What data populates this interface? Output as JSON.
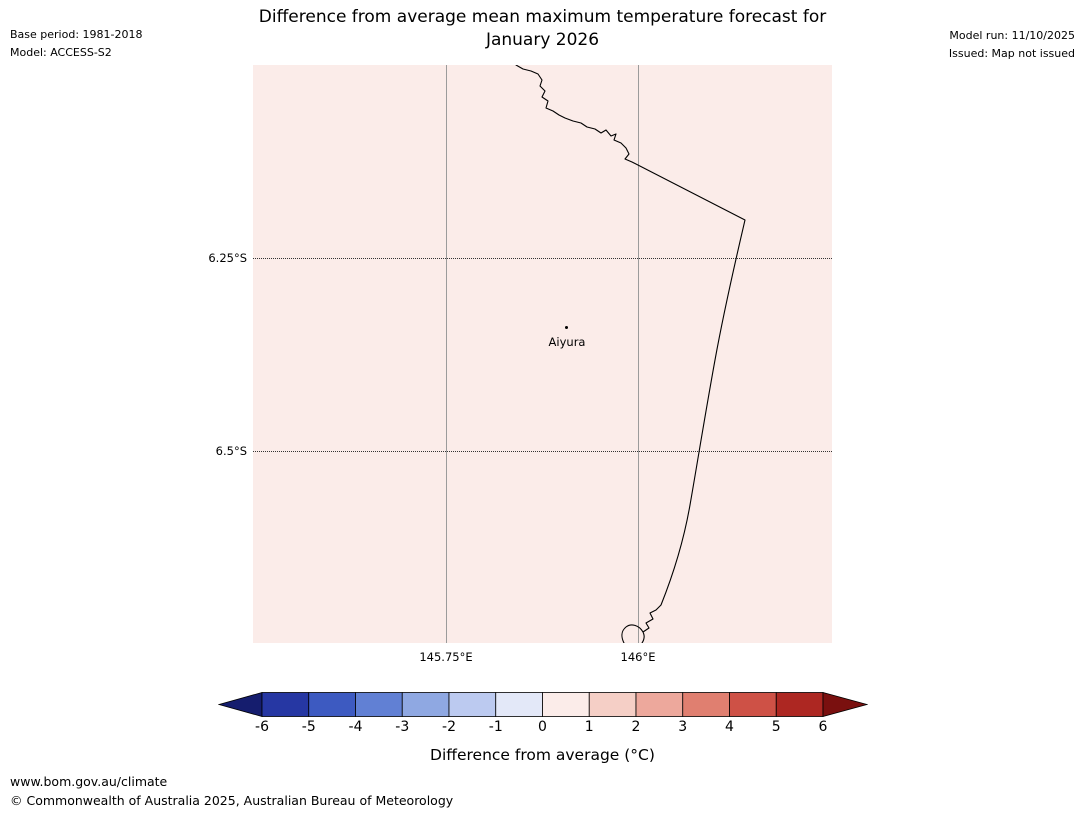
{
  "header": {
    "title_line1": "Difference from average mean maximum temperature forecast for",
    "title_line2": "January 2026",
    "base_period": "Base period: 1981-2018",
    "model": "Model: ACCESS-S2",
    "model_run": "Model run: 11/10/2025",
    "issued": "Issued: Map not issued"
  },
  "map": {
    "fill_color": "#fbece9",
    "coastline_color": "#000000",
    "lat_ticks": [
      "6.25°S",
      "6.5°S"
    ],
    "lon_ticks": [
      "145.75°E",
      "146°E"
    ],
    "station": {
      "name": "Aiyura"
    }
  },
  "colorbar": {
    "label": "Difference from average (°C)",
    "ticks": [
      "-6",
      "-5",
      "-4",
      "-3",
      "-2",
      "-1",
      "0",
      "1",
      "2",
      "3",
      "4",
      "5",
      "6"
    ],
    "segments": [
      "#2637a3",
      "#3d5ac1",
      "#6180d4",
      "#8fa8e2",
      "#bccaf0",
      "#e3e8f8",
      "#fbece9",
      "#f5cfc6",
      "#eda89c",
      "#e07f70",
      "#ce5146",
      "#ad2722"
    ],
    "left_arrow_color": "#151d6e",
    "right_arrow_color": "#7a100f",
    "outline_color": "#000000"
  },
  "footer": {
    "url": "www.bom.gov.au/climate",
    "copyright": "© Commonwealth of Australia 2025, Australian Bureau of Meteorology"
  }
}
